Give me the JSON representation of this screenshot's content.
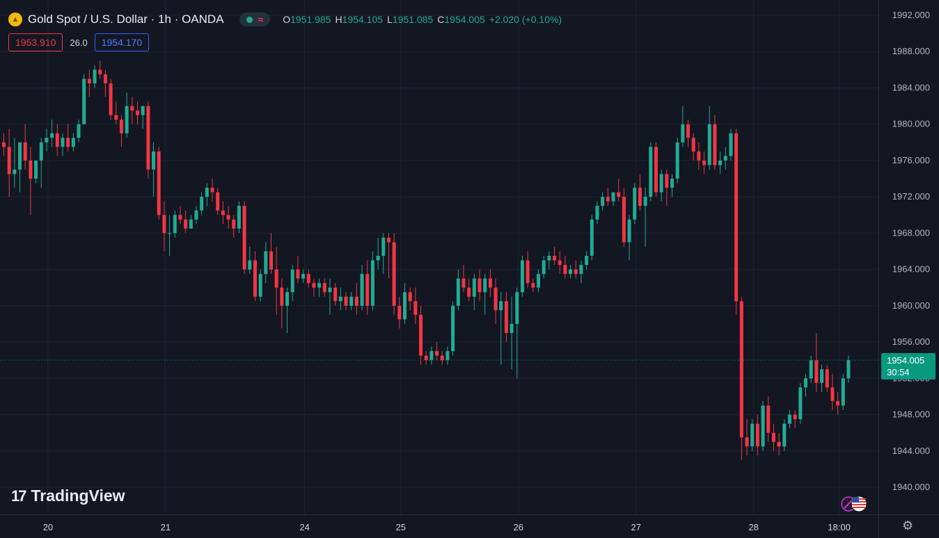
{
  "header": {
    "title": "Gold Spot / U.S. Dollar · 1h · OANDA",
    "wave_symbol": "≈",
    "ohlc": {
      "o_label": "O",
      "o": "1951.985",
      "h_label": "H",
      "h": "1954.105",
      "l_label": "L",
      "l": "1951.085",
      "c_label": "C",
      "c": "1954.005",
      "change": "+2.020 (+0.10%)"
    }
  },
  "quotes": {
    "bid": "1953.910",
    "spread": "26.0",
    "ask": "1954.170"
  },
  "last_price": {
    "price": "1954.005",
    "countdown": "30:54"
  },
  "watermark": {
    "logo": "17",
    "brand": "TradingView"
  },
  "colors": {
    "up": "#22ab94",
    "down": "#f23645",
    "background": "#131722",
    "grid": "#1f2332"
  },
  "icons": [
    "gold-coin-icon",
    "market-status-icon",
    "tradingview-logo-icon",
    "us-flag-icon",
    "settings-icon"
  ],
  "chart_data": {
    "type": "candlestick",
    "symbol": "XAUUSD",
    "timeframe": "1h",
    "ylim": [
      1938,
      1993
    ],
    "y_ticks": [
      "1940.000",
      "1944.000",
      "1948.000",
      "1952.000",
      "1956.000",
      "1960.000",
      "1964.000",
      "1968.000",
      "1972.000",
      "1976.000",
      "1980.000",
      "1984.000",
      "1988.000",
      "1992.000"
    ],
    "x_ticks": [
      {
        "label": "20",
        "bar": 8
      },
      {
        "label": "21",
        "bar": 30
      },
      {
        "label": "24",
        "bar": 56
      },
      {
        "label": "25",
        "bar": 74
      },
      {
        "label": "26",
        "bar": 96
      },
      {
        "label": "27",
        "bar": 118
      },
      {
        "label": "28",
        "bar": 140
      },
      {
        "label": "18:00",
        "bar": 156
      }
    ],
    "candles": [
      [
        1978.0,
        1979.0,
        1976.5,
        1977.5
      ],
      [
        1977.5,
        1979.5,
        1972.0,
        1974.5
      ],
      [
        1974.5,
        1978.5,
        1973.0,
        1975.0
      ],
      [
        1975.0,
        1978.0,
        1972.5,
        1978.0
      ],
      [
        1978.0,
        1980.0,
        1975.0,
        1976.0
      ],
      [
        1976.0,
        1977.5,
        1970.0,
        1974.0
      ],
      [
        1974.0,
        1976.0,
        1973.5,
        1976.0
      ],
      [
        1976.0,
        1978.5,
        1973.0,
        1978.0
      ],
      [
        1978.0,
        1979.5,
        1977.0,
        1978.5
      ],
      [
        1978.5,
        1980.5,
        1977.5,
        1979.0
      ],
      [
        1979.0,
        1980.0,
        1976.5,
        1977.5
      ],
      [
        1977.5,
        1979.0,
        1976.5,
        1978.5
      ],
      [
        1978.5,
        1980.0,
        1977.0,
        1977.5
      ],
      [
        1977.5,
        1979.0,
        1977.0,
        1978.5
      ],
      [
        1978.5,
        1980.5,
        1978.0,
        1980.0
      ],
      [
        1980.0,
        1985.5,
        1980.0,
        1985.0
      ],
      [
        1985.0,
        1986.0,
        1983.0,
        1984.5
      ],
      [
        1984.5,
        1986.5,
        1984.0,
        1986.0
      ],
      [
        1986.0,
        1987.0,
        1985.0,
        1985.5
      ],
      [
        1985.5,
        1986.0,
        1983.0,
        1984.5
      ],
      [
        1984.5,
        1985.0,
        1980.5,
        1981.0
      ],
      [
        1981.0,
        1982.5,
        1980.0,
        1980.5
      ],
      [
        1980.5,
        1981.0,
        1977.5,
        1979.0
      ],
      [
        1979.0,
        1983.5,
        1978.5,
        1982.0
      ],
      [
        1982.0,
        1983.0,
        1980.0,
        1981.5
      ],
      [
        1981.5,
        1982.5,
        1980.0,
        1981.0
      ],
      [
        1981.0,
        1982.0,
        1979.5,
        1982.0
      ],
      [
        1982.0,
        1982.5,
        1974.0,
        1975.0
      ],
      [
        1975.0,
        1978.0,
        1972.0,
        1977.0
      ],
      [
        1977.0,
        1977.5,
        1969.5,
        1970.0
      ],
      [
        1970.0,
        1971.5,
        1966.0,
        1968.0
      ],
      [
        1968.0,
        1970.0,
        1965.5,
        1968.0
      ],
      [
        1968.0,
        1970.5,
        1967.5,
        1970.0
      ],
      [
        1970.0,
        1971.0,
        1969.0,
        1969.5
      ],
      [
        1969.5,
        1970.5,
        1968.0,
        1968.5
      ],
      [
        1968.5,
        1970.0,
        1968.5,
        1969.5
      ],
      [
        1969.5,
        1971.0,
        1969.0,
        1970.5
      ],
      [
        1970.5,
        1972.5,
        1970.0,
        1972.0
      ],
      [
        1972.0,
        1973.5,
        1971.0,
        1973.0
      ],
      [
        1973.0,
        1974.0,
        1971.5,
        1972.5
      ],
      [
        1972.5,
        1973.0,
        1970.0,
        1970.5
      ],
      [
        1970.5,
        1971.5,
        1969.0,
        1970.0
      ],
      [
        1970.0,
        1971.0,
        1968.5,
        1969.5
      ],
      [
        1969.5,
        1970.0,
        1967.5,
        1968.5
      ],
      [
        1968.5,
        1971.5,
        1968.0,
        1971.0
      ],
      [
        1971.0,
        1971.5,
        1963.5,
        1964.0
      ],
      [
        1964.0,
        1966.5,
        1963.5,
        1965.0
      ],
      [
        1965.0,
        1966.0,
        1960.5,
        1961.0
      ],
      [
        1961.0,
        1964.0,
        1960.5,
        1963.5
      ],
      [
        1963.5,
        1967.0,
        1962.5,
        1966.0
      ],
      [
        1966.0,
        1968.0,
        1963.5,
        1964.0
      ],
      [
        1964.0,
        1966.5,
        1959.0,
        1962.0
      ],
      [
        1962.0,
        1963.0,
        1957.5,
        1960.0
      ],
      [
        1960.0,
        1962.0,
        1957.0,
        1961.5
      ],
      [
        1961.5,
        1964.5,
        1960.5,
        1964.0
      ],
      [
        1964.0,
        1965.5,
        1962.5,
        1963.0
      ],
      [
        1963.0,
        1964.0,
        1962.5,
        1963.5
      ],
      [
        1963.5,
        1964.0,
        1962.0,
        1962.5
      ],
      [
        1962.5,
        1963.0,
        1961.0,
        1962.0
      ],
      [
        1962.0,
        1963.0,
        1961.0,
        1962.5
      ],
      [
        1962.5,
        1963.0,
        1961.0,
        1961.5
      ],
      [
        1961.5,
        1963.0,
        1959.0,
        1962.0
      ],
      [
        1962.0,
        1962.5,
        1960.0,
        1960.5
      ],
      [
        1960.5,
        1962.0,
        1959.5,
        1961.0
      ],
      [
        1961.0,
        1961.5,
        1959.5,
        1960.0
      ],
      [
        1960.0,
        1961.5,
        1959.5,
        1961.0
      ],
      [
        1961.0,
        1962.5,
        1959.0,
        1960.0
      ],
      [
        1960.0,
        1964.5,
        1959.5,
        1963.5
      ],
      [
        1963.5,
        1965.0,
        1959.0,
        1960.0
      ],
      [
        1960.0,
        1966.0,
        1959.5,
        1965.0
      ],
      [
        1965.0,
        1967.5,
        1964.0,
        1965.5
      ],
      [
        1965.5,
        1968.0,
        1963.5,
        1967.5
      ],
      [
        1967.5,
        1968.0,
        1963.0,
        1967.0
      ],
      [
        1967.0,
        1968.0,
        1959.0,
        1960.0
      ],
      [
        1960.0,
        1961.0,
        1957.5,
        1958.5
      ],
      [
        1958.5,
        1962.5,
        1958.0,
        1961.5
      ],
      [
        1961.5,
        1962.0,
        1959.5,
        1960.5
      ],
      [
        1960.5,
        1962.0,
        1958.0,
        1959.0
      ],
      [
        1959.0,
        1960.0,
        1953.5,
        1954.5
      ],
      [
        1954.5,
        1955.0,
        1953.5,
        1954.0
      ],
      [
        1954.0,
        1955.5,
        1953.5,
        1955.0
      ],
      [
        1955.0,
        1956.0,
        1954.0,
        1954.5
      ],
      [
        1954.5,
        1955.0,
        1953.5,
        1954.0
      ],
      [
        1954.0,
        1955.5,
        1953.5,
        1955.0
      ],
      [
        1955.0,
        1960.5,
        1954.5,
        1960.0
      ],
      [
        1960.0,
        1964.0,
        1959.5,
        1963.0
      ],
      [
        1963.0,
        1964.5,
        1961.5,
        1962.0
      ],
      [
        1962.0,
        1963.0,
        1960.5,
        1961.0
      ],
      [
        1961.0,
        1963.5,
        1959.5,
        1963.0
      ],
      [
        1963.0,
        1964.0,
        1960.5,
        1961.5
      ],
      [
        1961.5,
        1963.5,
        1959.0,
        1963.0
      ],
      [
        1963.0,
        1964.0,
        1961.0,
        1962.0
      ],
      [
        1962.0,
        1963.0,
        1958.0,
        1959.5
      ],
      [
        1959.5,
        1961.5,
        1953.5,
        1960.5
      ],
      [
        1960.5,
        1961.5,
        1956.0,
        1957.0
      ],
      [
        1957.0,
        1961.0,
        1953.0,
        1958.0
      ],
      [
        1958.0,
        1962.0,
        1952.0,
        1961.5
      ],
      [
        1961.5,
        1965.5,
        1961.0,
        1965.0
      ],
      [
        1965.0,
        1966.0,
        1962.0,
        1962.5
      ],
      [
        1962.5,
        1963.0,
        1961.5,
        1962.0
      ],
      [
        1962.0,
        1964.0,
        1961.5,
        1963.5
      ],
      [
        1963.5,
        1965.5,
        1963.0,
        1965.0
      ],
      [
        1965.0,
        1966.0,
        1964.0,
        1965.5
      ],
      [
        1965.5,
        1966.5,
        1964.5,
        1965.0
      ],
      [
        1965.0,
        1966.0,
        1963.5,
        1964.5
      ],
      [
        1964.5,
        1965.5,
        1963.0,
        1963.5
      ],
      [
        1963.5,
        1964.5,
        1963.0,
        1964.0
      ],
      [
        1964.0,
        1965.0,
        1963.0,
        1963.5
      ],
      [
        1963.5,
        1965.0,
        1962.5,
        1964.5
      ],
      [
        1964.5,
        1966.0,
        1964.0,
        1965.5
      ],
      [
        1965.5,
        1970.0,
        1965.0,
        1969.5
      ],
      [
        1969.5,
        1971.5,
        1969.0,
        1971.0
      ],
      [
        1971.0,
        1972.5,
        1970.5,
        1972.0
      ],
      [
        1972.0,
        1973.0,
        1971.0,
        1971.5
      ],
      [
        1971.5,
        1972.5,
        1971.0,
        1972.5
      ],
      [
        1972.5,
        1974.0,
        1971.5,
        1972.0
      ],
      [
        1972.0,
        1973.0,
        1966.5,
        1967.0
      ],
      [
        1967.0,
        1970.0,
        1965.0,
        1969.5
      ],
      [
        1969.5,
        1973.5,
        1969.0,
        1973.0
      ],
      [
        1973.0,
        1974.5,
        1970.5,
        1971.0
      ],
      [
        1971.0,
        1973.0,
        1966.5,
        1972.0
      ],
      [
        1972.0,
        1978.0,
        1971.5,
        1977.5
      ],
      [
        1977.5,
        1978.0,
        1972.0,
        1972.5
      ],
      [
        1972.5,
        1975.0,
        1971.5,
        1974.5
      ],
      [
        1974.5,
        1975.0,
        1971.0,
        1973.0
      ],
      [
        1973.0,
        1974.5,
        1972.0,
        1974.0
      ],
      [
        1974.0,
        1978.5,
        1973.5,
        1978.0
      ],
      [
        1978.0,
        1982.0,
        1977.5,
        1980.0
      ],
      [
        1980.0,
        1980.5,
        1977.5,
        1978.5
      ],
      [
        1978.5,
        1979.0,
        1976.0,
        1977.0
      ],
      [
        1977.0,
        1978.0,
        1975.0,
        1976.0
      ],
      [
        1976.0,
        1977.0,
        1974.5,
        1975.5
      ],
      [
        1975.5,
        1982.0,
        1975.0,
        1980.0
      ],
      [
        1980.0,
        1981.0,
        1975.0,
        1975.5
      ],
      [
        1975.5,
        1977.0,
        1974.5,
        1976.0
      ],
      [
        1976.0,
        1977.5,
        1975.0,
        1976.5
      ],
      [
        1976.5,
        1979.5,
        1976.0,
        1979.0
      ],
      [
        1979.0,
        1979.5,
        1959.0,
        1960.5
      ],
      [
        1960.5,
        1961.0,
        1943.0,
        1945.5
      ],
      [
        1945.5,
        1947.5,
        1943.5,
        1944.5
      ],
      [
        1944.5,
        1947.5,
        1944.0,
        1947.0
      ],
      [
        1947.0,
        1948.0,
        1943.5,
        1944.5
      ],
      [
        1944.5,
        1949.5,
        1944.0,
        1949.0
      ],
      [
        1949.0,
        1950.0,
        1945.0,
        1946.0
      ],
      [
        1946.0,
        1947.0,
        1944.0,
        1945.0
      ],
      [
        1945.0,
        1946.0,
        1943.5,
        1944.5
      ],
      [
        1944.5,
        1947.5,
        1944.0,
        1947.0
      ],
      [
        1947.0,
        1948.5,
        1946.5,
        1948.0
      ],
      [
        1948.0,
        1948.5,
        1946.5,
        1947.5
      ],
      [
        1947.5,
        1951.5,
        1947.0,
        1951.0
      ],
      [
        1951.0,
        1952.5,
        1950.0,
        1952.0
      ],
      [
        1952.0,
        1954.5,
        1951.5,
        1954.0
      ],
      [
        1954.0,
        1957.0,
        1950.5,
        1951.5
      ],
      [
        1951.5,
        1953.5,
        1950.5,
        1953.0
      ],
      [
        1953.0,
        1953.5,
        1950.5,
        1951.0
      ],
      [
        1951.0,
        1952.5,
        1948.5,
        1949.5
      ],
      [
        1949.5,
        1950.5,
        1948.0,
        1949.0
      ],
      [
        1949.0,
        1952.5,
        1948.5,
        1952.0
      ],
      [
        1952.0,
        1954.5,
        1951.5,
        1954.0
      ]
    ]
  }
}
